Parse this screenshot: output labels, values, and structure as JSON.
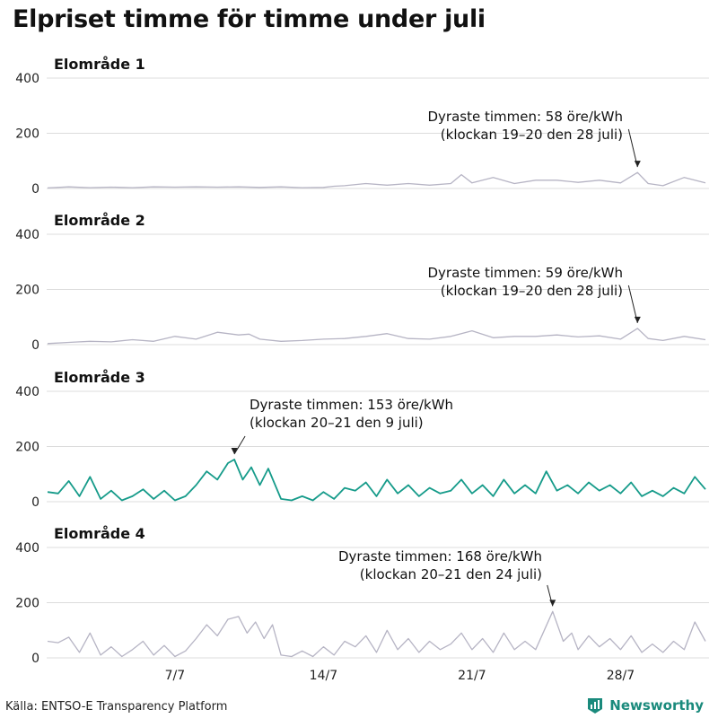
{
  "page": {
    "title": "Elpriset timme för timme under juli",
    "source": "Källa: ENTSO-E Transparency Platform",
    "brand": "Newsworthy"
  },
  "colors": {
    "gray_line": "#b6b4c4",
    "highlight_line": "#169b8a",
    "grid": "#dcdcdc",
    "brand": "#1a8a7c",
    "brand_logo_icon": "bar-chart-shield-icon"
  },
  "chart_data": [
    {
      "type": "line",
      "title": "Elområde 1",
      "ylim": [
        0,
        400
      ],
      "yticks": [
        0,
        200,
        400
      ],
      "xlim": [
        1,
        32
      ],
      "xticks": [
        {
          "value": 7,
          "label": "7/7"
        },
        {
          "value": 14,
          "label": "14/7"
        },
        {
          "value": 21,
          "label": "21/7"
        },
        {
          "value": 28,
          "label": "28/7"
        }
      ],
      "show_xtick_labels": false,
      "highlight": false,
      "grid": true,
      "max": {
        "day": 28.8,
        "value": 58
      },
      "annotation": {
        "line1": "Dyraste timmen: 58 öre/kWh",
        "line2": "(klockan 19–20 den 28 juli)"
      },
      "points": [
        [
          1,
          2
        ],
        [
          2,
          6
        ],
        [
          3,
          3
        ],
        [
          4,
          5
        ],
        [
          5,
          3
        ],
        [
          6,
          6
        ],
        [
          7,
          5
        ],
        [
          8,
          6
        ],
        [
          9,
          5
        ],
        [
          10,
          6
        ],
        [
          11,
          4
        ],
        [
          12,
          6
        ],
        [
          13,
          3
        ],
        [
          14,
          4
        ],
        [
          14.5,
          8
        ],
        [
          15,
          10
        ],
        [
          16,
          18
        ],
        [
          17,
          12
        ],
        [
          18,
          18
        ],
        [
          19,
          12
        ],
        [
          20,
          18
        ],
        [
          20.5,
          50
        ],
        [
          21,
          20
        ],
        [
          22,
          40
        ],
        [
          23,
          18
        ],
        [
          24,
          30
        ],
        [
          25,
          30
        ],
        [
          26,
          22
        ],
        [
          27,
          30
        ],
        [
          28,
          20
        ],
        [
          28.8,
          58
        ],
        [
          29.3,
          18
        ],
        [
          30,
          10
        ],
        [
          31,
          40
        ],
        [
          32,
          20
        ]
      ]
    },
    {
      "type": "line",
      "title": "Elområde 2",
      "ylim": [
        0,
        400
      ],
      "yticks": [
        0,
        200,
        400
      ],
      "xlim": [
        1,
        32
      ],
      "xticks": [
        {
          "value": 7,
          "label": "7/7"
        },
        {
          "value": 14,
          "label": "14/7"
        },
        {
          "value": 21,
          "label": "21/7"
        },
        {
          "value": 28,
          "label": "28/7"
        }
      ],
      "show_xtick_labels": false,
      "highlight": false,
      "grid": true,
      "max": {
        "day": 28.8,
        "value": 59
      },
      "annotation": {
        "line1": "Dyraste timmen: 59 öre/kWh",
        "line2": "(klockan 19–20 den 28 juli)"
      },
      "points": [
        [
          1,
          4
        ],
        [
          2,
          8
        ],
        [
          3,
          12
        ],
        [
          4,
          10
        ],
        [
          5,
          18
        ],
        [
          6,
          12
        ],
        [
          7,
          30
        ],
        [
          8,
          20
        ],
        [
          9,
          45
        ],
        [
          10,
          35
        ],
        [
          10.5,
          38
        ],
        [
          11,
          20
        ],
        [
          12,
          12
        ],
        [
          13,
          15
        ],
        [
          14,
          20
        ],
        [
          15,
          22
        ],
        [
          16,
          30
        ],
        [
          17,
          40
        ],
        [
          18,
          22
        ],
        [
          19,
          20
        ],
        [
          20,
          30
        ],
        [
          21,
          50
        ],
        [
          22,
          25
        ],
        [
          23,
          30
        ],
        [
          24,
          30
        ],
        [
          25,
          35
        ],
        [
          26,
          28
        ],
        [
          27,
          32
        ],
        [
          28,
          20
        ],
        [
          28.8,
          59
        ],
        [
          29.3,
          22
        ],
        [
          30,
          15
        ],
        [
          31,
          30
        ],
        [
          32,
          18
        ]
      ]
    },
    {
      "type": "line",
      "title": "Elområde 3",
      "ylim": [
        0,
        400
      ],
      "yticks": [
        0,
        200,
        400
      ],
      "xlim": [
        1,
        32
      ],
      "xticks": [
        {
          "value": 7,
          "label": "7/7"
        },
        {
          "value": 14,
          "label": "14/7"
        },
        {
          "value": 21,
          "label": "21/7"
        },
        {
          "value": 28,
          "label": "28/7"
        }
      ],
      "show_xtick_labels": false,
      "highlight": true,
      "grid": true,
      "max": {
        "day": 9.8,
        "value": 153
      },
      "annotation": {
        "line1": "Dyraste timmen: 153 öre/kWh",
        "line2": "(klockan 20–21 den 9 juli)"
      },
      "points": [
        [
          1,
          35
        ],
        [
          1.5,
          30
        ],
        [
          2,
          75
        ],
        [
          2.5,
          20
        ],
        [
          3,
          90
        ],
        [
          3.5,
          10
        ],
        [
          4,
          40
        ],
        [
          4.5,
          5
        ],
        [
          5,
          20
        ],
        [
          5.5,
          45
        ],
        [
          6,
          10
        ],
        [
          6.5,
          40
        ],
        [
          7,
          5
        ],
        [
          7.5,
          20
        ],
        [
          8,
          60
        ],
        [
          8.5,
          110
        ],
        [
          9,
          80
        ],
        [
          9.5,
          140
        ],
        [
          9.8,
          153
        ],
        [
          10.2,
          80
        ],
        [
          10.6,
          125
        ],
        [
          11,
          60
        ],
        [
          11.4,
          120
        ],
        [
          12,
          10
        ],
        [
          12.5,
          5
        ],
        [
          13,
          20
        ],
        [
          13.5,
          5
        ],
        [
          14,
          35
        ],
        [
          14.5,
          10
        ],
        [
          15,
          50
        ],
        [
          15.5,
          40
        ],
        [
          16,
          70
        ],
        [
          16.5,
          20
        ],
        [
          17,
          80
        ],
        [
          17.5,
          30
        ],
        [
          18,
          60
        ],
        [
          18.5,
          20
        ],
        [
          19,
          50
        ],
        [
          19.5,
          30
        ],
        [
          20,
          40
        ],
        [
          20.5,
          80
        ],
        [
          21,
          30
        ],
        [
          21.5,
          60
        ],
        [
          22,
          20
        ],
        [
          22.5,
          80
        ],
        [
          23,
          30
        ],
        [
          23.5,
          60
        ],
        [
          24,
          30
        ],
        [
          24.5,
          110
        ],
        [
          25,
          40
        ],
        [
          25.5,
          60
        ],
        [
          26,
          30
        ],
        [
          26.5,
          70
        ],
        [
          27,
          40
        ],
        [
          27.5,
          60
        ],
        [
          28,
          30
        ],
        [
          28.5,
          70
        ],
        [
          29,
          20
        ],
        [
          29.5,
          40
        ],
        [
          30,
          20
        ],
        [
          30.5,
          50
        ],
        [
          31,
          30
        ],
        [
          31.5,
          90
        ],
        [
          32,
          45
        ]
      ]
    },
    {
      "type": "line",
      "title": "Elområde 4",
      "ylim": [
        0,
        400
      ],
      "yticks": [
        0,
        200,
        400
      ],
      "xlim": [
        1,
        32
      ],
      "xticks": [
        {
          "value": 7,
          "label": "7/7"
        },
        {
          "value": 14,
          "label": "14/7"
        },
        {
          "value": 21,
          "label": "21/7"
        },
        {
          "value": 28,
          "label": "28/7"
        }
      ],
      "show_xtick_labels": true,
      "highlight": false,
      "grid": true,
      "max": {
        "day": 24.8,
        "value": 168
      },
      "annotation": {
        "line1": "Dyraste timmen: 168 öre/kWh",
        "line2": "(klockan 20–21 den 24 juli)"
      },
      "points": [
        [
          1,
          60
        ],
        [
          1.5,
          55
        ],
        [
          2,
          75
        ],
        [
          2.5,
          20
        ],
        [
          3,
          90
        ],
        [
          3.5,
          10
        ],
        [
          4,
          40
        ],
        [
          4.5,
          5
        ],
        [
          5,
          30
        ],
        [
          5.5,
          60
        ],
        [
          6,
          10
        ],
        [
          6.5,
          45
        ],
        [
          7,
          5
        ],
        [
          7.5,
          25
        ],
        [
          8,
          70
        ],
        [
          8.5,
          120
        ],
        [
          9,
          80
        ],
        [
          9.5,
          140
        ],
        [
          10,
          150
        ],
        [
          10.4,
          90
        ],
        [
          10.8,
          130
        ],
        [
          11.2,
          70
        ],
        [
          11.6,
          120
        ],
        [
          12,
          10
        ],
        [
          12.5,
          5
        ],
        [
          13,
          25
        ],
        [
          13.5,
          5
        ],
        [
          14,
          40
        ],
        [
          14.5,
          10
        ],
        [
          15,
          60
        ],
        [
          15.5,
          40
        ],
        [
          16,
          80
        ],
        [
          16.5,
          20
        ],
        [
          17,
          100
        ],
        [
          17.5,
          30
        ],
        [
          18,
          70
        ],
        [
          18.5,
          20
        ],
        [
          19,
          60
        ],
        [
          19.5,
          30
        ],
        [
          20,
          50
        ],
        [
          20.5,
          90
        ],
        [
          21,
          30
        ],
        [
          21.5,
          70
        ],
        [
          22,
          20
        ],
        [
          22.5,
          90
        ],
        [
          23,
          30
        ],
        [
          23.5,
          60
        ],
        [
          24,
          30
        ],
        [
          24.8,
          168
        ],
        [
          25.3,
          60
        ],
        [
          25.7,
          90
        ],
        [
          26,
          30
        ],
        [
          26.5,
          80
        ],
        [
          27,
          40
        ],
        [
          27.5,
          70
        ],
        [
          28,
          30
        ],
        [
          28.5,
          80
        ],
        [
          29,
          20
        ],
        [
          29.5,
          50
        ],
        [
          30,
          20
        ],
        [
          30.5,
          60
        ],
        [
          31,
          30
        ],
        [
          31.5,
          130
        ],
        [
          32,
          60
        ]
      ]
    }
  ]
}
